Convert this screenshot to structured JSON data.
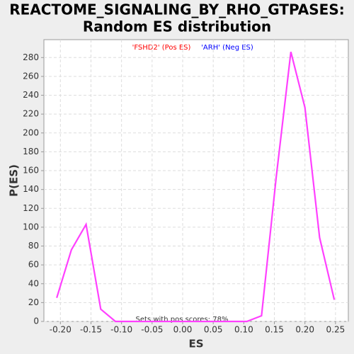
{
  "chart_data": {
    "type": "line",
    "title": [
      "REACTOME_SIGNALING_BY_RHO_GTPASES:",
      "Random ES distribution"
    ],
    "x_label": "ES",
    "y_label": "P(ES)",
    "legend_texts": [
      {
        "text": "'FSHD2' (Pos ES)",
        "color": "#ff0000"
      },
      {
        "text": "'ARH' (Neg ES)",
        "color": "#0000ff"
      }
    ],
    "annotation": "Sets with pos scores: 78%",
    "x": [
      -0.206,
      -0.182,
      -0.158,
      -0.134,
      -0.11,
      -0.086,
      -0.062,
      -0.039,
      -0.015,
      0.009,
      0.033,
      0.057,
      0.081,
      0.105,
      0.129,
      0.153,
      0.177,
      0.2,
      0.224,
      0.248
    ],
    "series": [
      {
        "color": "#ff40ff",
        "values": [
          25,
          76,
          103,
          13,
          0,
          0,
          0,
          0,
          0,
          0,
          0,
          0,
          0,
          0,
          6,
          153,
          286,
          227,
          89,
          23
        ]
      }
    ],
    "xlim": [
      -0.227,
      0.271
    ],
    "ylim": [
      0,
      299
    ],
    "xticks": [
      {
        "value": -0.2,
        "label": "-0.20"
      },
      -0.15,
      {
        "value": -0.1,
        "label": "-0.10"
      },
      -0.05,
      {
        "value": 0,
        "label": "0.00"
      },
      0.05,
      {
        "value": 0.1,
        "label": "0.10"
      },
      0.15,
      {
        "value": 0.2,
        "label": "0.20"
      },
      0.25
    ],
    "yticks": [
      0,
      20,
      40,
      60,
      80,
      100,
      120,
      140,
      160,
      180,
      200,
      220,
      240,
      260,
      280
    ],
    "grid": true
  }
}
